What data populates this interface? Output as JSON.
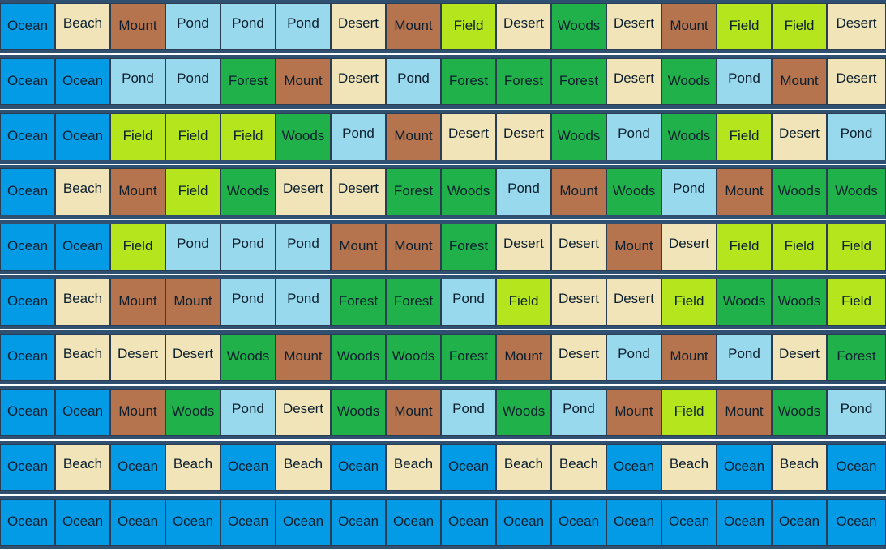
{
  "board": {
    "colors": {
      "Ocean": "#039be5",
      "Beach": "#f1e4b8",
      "Mount": "#b5734e",
      "Pond": "#99d9ed",
      "Desert": "#f1e4b8",
      "Field": "#b5e61d",
      "Woods": "#21b14a",
      "Forest": "#21b14a"
    },
    "rows": [
      [
        "Ocean",
        "Beach",
        "Mount",
        "Pond",
        "Pond",
        "Pond",
        "Desert",
        "Mount",
        "Field",
        "Desert",
        "Woods",
        "Desert",
        "Mount",
        "Field",
        "Field",
        "Desert"
      ],
      [
        "Ocean",
        "Ocean",
        "Pond",
        "Pond",
        "Forest",
        "Mount",
        "Desert",
        "Pond",
        "Forest",
        "Forest",
        "Forest",
        "Desert",
        "Woods",
        "Pond",
        "Mount",
        "Desert"
      ],
      [
        "Ocean",
        "Ocean",
        "Field",
        "Field",
        "Field",
        "Woods",
        "Pond",
        "Mount",
        "Desert",
        "Desert",
        "Woods",
        "Pond",
        "Woods",
        "Field",
        "Desert",
        "Pond"
      ],
      [
        "Ocean",
        "Beach",
        "Mount",
        "Field",
        "Woods",
        "Desert",
        "Desert",
        "Forest",
        "Woods",
        "Pond",
        "Mount",
        "Woods",
        "Pond",
        "Mount",
        "Woods",
        "Woods"
      ],
      [
        "Ocean",
        "Ocean",
        "Field",
        "Pond",
        "Pond",
        "Pond",
        "Mount",
        "Mount",
        "Forest",
        "Desert",
        "Desert",
        "Mount",
        "Desert",
        "Field",
        "Field",
        "Field"
      ],
      [
        "Ocean",
        "Beach",
        "Mount",
        "Mount",
        "Pond",
        "Pond",
        "Forest",
        "Forest",
        "Pond",
        "Field",
        "Desert",
        "Desert",
        "Field",
        "Woods",
        "Woods",
        "Field"
      ],
      [
        "Ocean",
        "Beach",
        "Desert",
        "Desert",
        "Woods",
        "Mount",
        "Woods",
        "Woods",
        "Forest",
        "Mount",
        "Desert",
        "Pond",
        "Mount",
        "Pond",
        "Desert",
        "Forest"
      ],
      [
        "Ocean",
        "Ocean",
        "Mount",
        "Woods",
        "Pond",
        "Desert",
        "Woods",
        "Mount",
        "Pond",
        "Woods",
        "Pond",
        "Mount",
        "Field",
        "Mount",
        "Woods",
        "Pond"
      ],
      [
        "Ocean",
        "Beach",
        "Ocean",
        "Beach",
        "Ocean",
        "Beach",
        "Ocean",
        "Beach",
        "Ocean",
        "Beach",
        "Beach",
        "Ocean",
        "Beach",
        "Ocean",
        "Beach",
        "Ocean"
      ],
      [
        "Ocean",
        "Ocean",
        "Ocean",
        "Ocean",
        "Ocean",
        "Ocean",
        "Ocean",
        "Ocean",
        "Ocean",
        "Ocean",
        "Ocean",
        "Ocean",
        "Ocean",
        "Ocean",
        "Ocean",
        "Ocean"
      ]
    ]
  }
}
